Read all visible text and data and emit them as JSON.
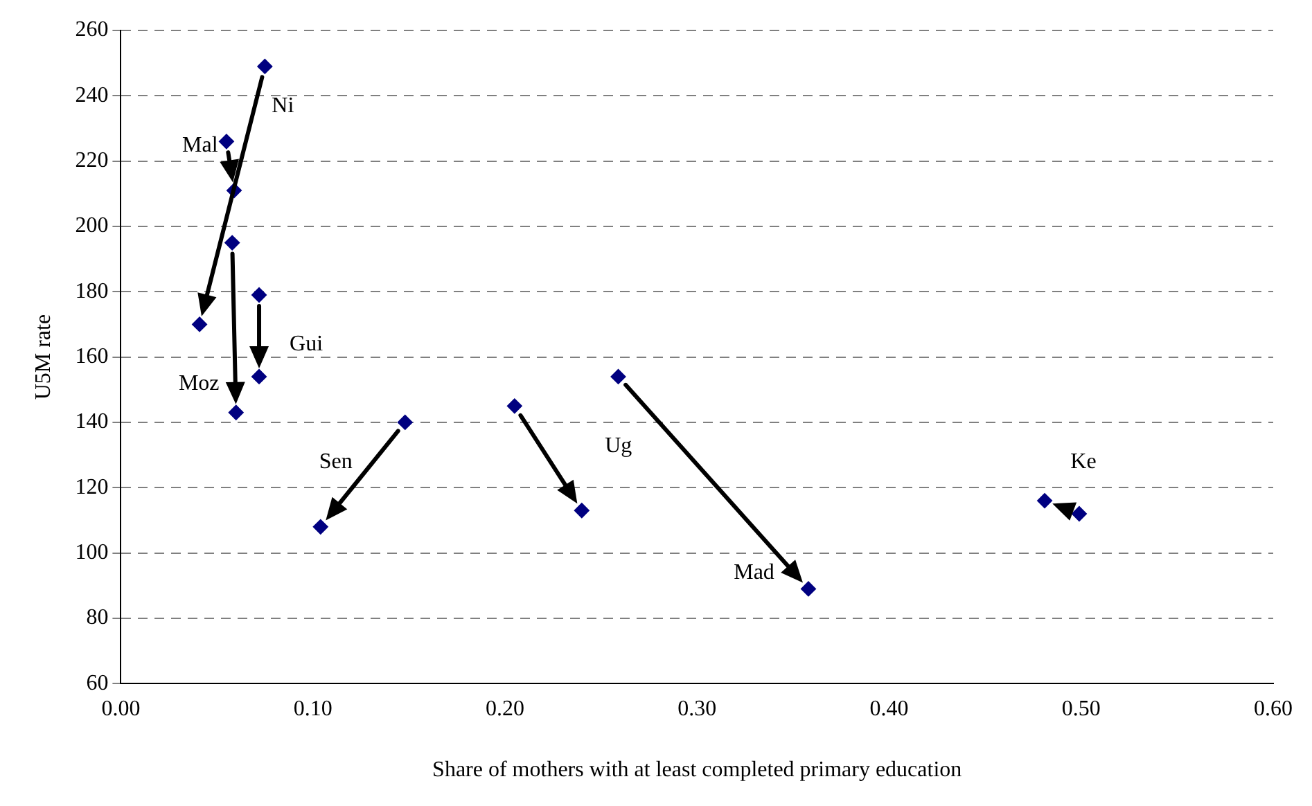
{
  "chart_data": {
    "type": "scatter",
    "xlabel": "Share of mothers with at least completed primary education",
    "ylabel": "U5M rate",
    "xlim": [
      0,
      0.6
    ],
    "xticks": [
      {
        "value": 0,
        "label": "0.00"
      },
      {
        "value": 0.1,
        "label": "0.10"
      },
      {
        "value": 0.2,
        "label": "0.20"
      },
      {
        "value": 0.3,
        "label": "0.30"
      },
      {
        "value": 0.4,
        "label": "0.40"
      },
      {
        "value": 0.5,
        "label": "0.50"
      },
      {
        "value": 0.6,
        "label": "0.60"
      }
    ],
    "ylim": [
      60,
      260
    ],
    "yticks": [
      60,
      80,
      100,
      120,
      140,
      160,
      180,
      200,
      220,
      240,
      260
    ],
    "grid": "y",
    "marker": "diamond",
    "series": [
      {
        "name": "Ni",
        "color": "#000080",
        "x": [
          0.075,
          0.041
        ],
        "values": [
          249,
          170
        ]
      },
      {
        "name": "Mal",
        "color": "#000080",
        "x": [
          0.055,
          0.059
        ],
        "values": [
          226,
          211
        ]
      },
      {
        "name": "Moz",
        "color": "#000080",
        "x": [
          0.058,
          0.06
        ],
        "values": [
          195,
          143
        ]
      },
      {
        "name": "Gui",
        "color": "#000080",
        "x": [
          0.072,
          0.072
        ],
        "values": [
          179,
          154
        ]
      },
      {
        "name": "Sen",
        "color": "#000080",
        "x": [
          0.148,
          0.104
        ],
        "values": [
          140,
          108
        ]
      },
      {
        "name": "Ug",
        "color": "#000080",
        "x": [
          0.205,
          0.24
        ],
        "values": [
          145,
          113
        ]
      },
      {
        "name": "Mad",
        "color": "#000080",
        "x": [
          0.259,
          0.358
        ],
        "values": [
          154,
          89
        ]
      },
      {
        "name": "Ke",
        "color": "#000080",
        "x": [
          0.499,
          0.481
        ],
        "values": [
          112,
          116
        ]
      }
    ]
  }
}
